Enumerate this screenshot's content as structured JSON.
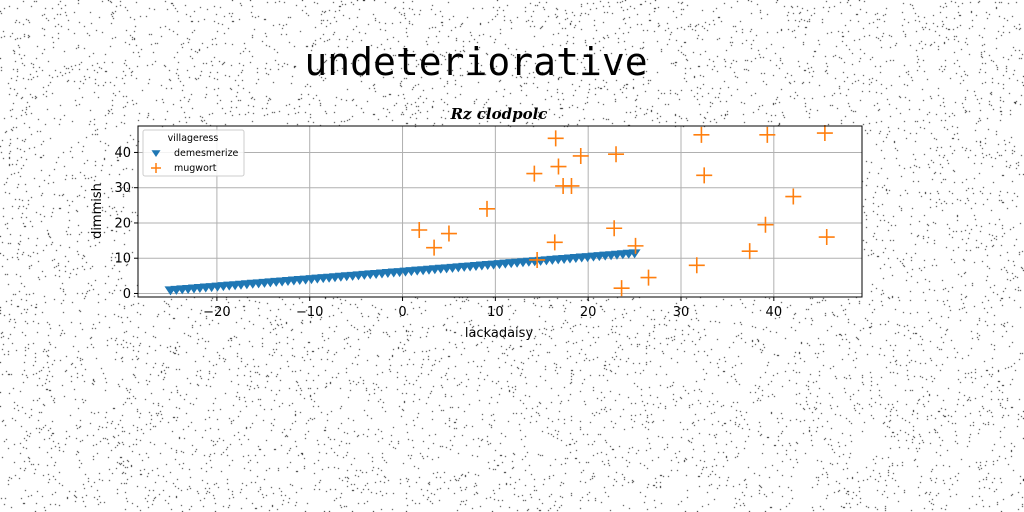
{
  "chart_data": {
    "type": "scatter",
    "suptitle": "undeteriorative",
    "title": "Rz clodpolc",
    "xlabel": "lackadaisy",
    "ylabel": "dimmish",
    "xlim": [
      -28.5,
      49.5
    ],
    "ylim": [
      -1,
      47.5
    ],
    "xticks": [
      -20,
      -10,
      0,
      10,
      20,
      30,
      40
    ],
    "yticks": [
      0,
      10,
      20,
      30,
      40
    ],
    "grid": true,
    "legend": {
      "title": "villageress",
      "placement": "top-left"
    },
    "colors": {
      "demesmerize": "#1f77b4",
      "mugwort": "#ff7f0e"
    },
    "series": [
      {
        "name": "demesmerize",
        "marker": "triangle-down",
        "line": {
          "x_start": -25,
          "x_end": 25,
          "y_start": 1,
          "y_end": 11.5,
          "count": 80
        }
      },
      {
        "name": "mugwort",
        "marker": "plus",
        "x": [
          16.5,
          16.8,
          14.2,
          17.3,
          18.2,
          19.2,
          23,
          32.2,
          39.3,
          45.5,
          32.5,
          42.1,
          39.1,
          37.4,
          45.7,
          31.7,
          9.1,
          1.8,
          3.4,
          5.0,
          16.4,
          14.5,
          22.8,
          25.1,
          26.5,
          23.6
        ],
        "y": [
          44,
          36,
          34,
          30.5,
          30.5,
          39,
          39.5,
          45,
          45,
          45.5,
          33.5,
          27.5,
          19.5,
          12,
          16,
          8,
          24,
          18,
          13,
          17,
          14.5,
          9.5,
          18.5,
          13.5,
          4.5,
          1.5
        ]
      }
    ]
  }
}
